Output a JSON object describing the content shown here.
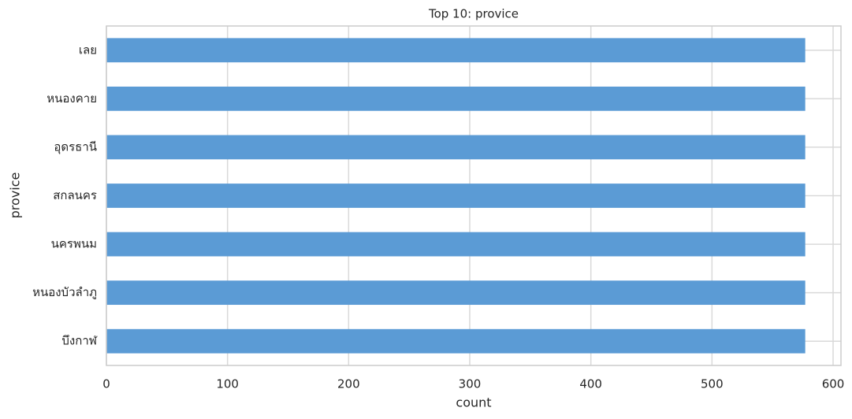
{
  "chart_data": {
    "type": "barh",
    "title": "Top 10: provice",
    "xlabel": "count",
    "ylabel": "provice",
    "categories": [
      "เลย",
      "หนองคาย",
      "อุดรธานี",
      "สกลนคร",
      "นครพนม",
      "หนองบัวลำภู",
      "บึงกาฬ"
    ],
    "values": [
      577,
      577,
      577,
      577,
      577,
      577,
      577
    ],
    "color": "#5b9bd5",
    "xlim": [
      0,
      606.5
    ],
    "xticks": [
      0,
      100,
      200,
      300,
      400,
      500,
      600
    ],
    "grid": true
  }
}
